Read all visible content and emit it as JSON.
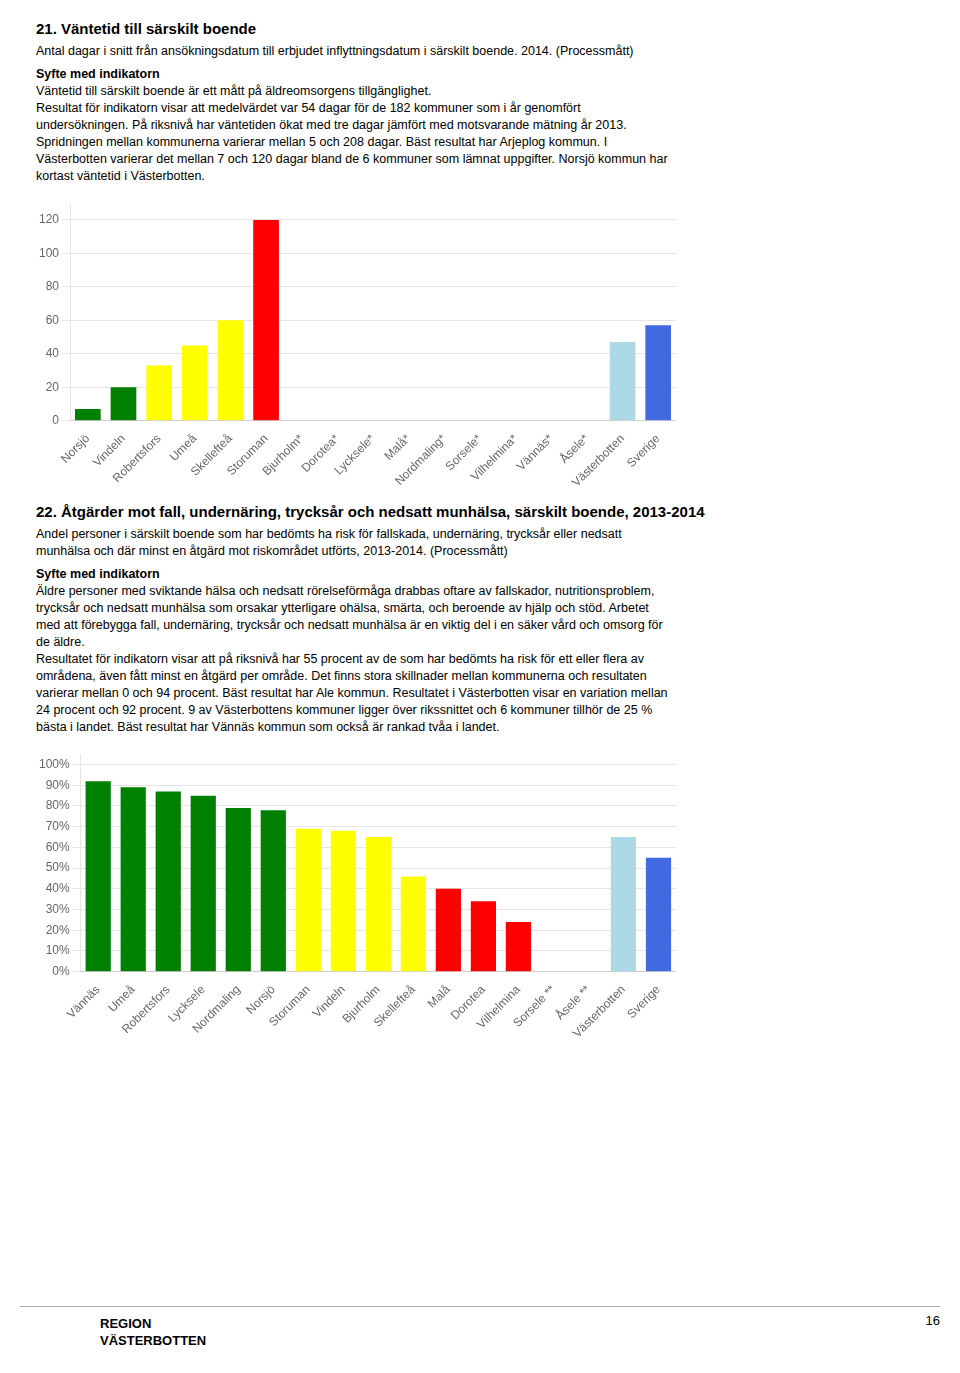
{
  "chart_data": [
    {
      "type": "bar",
      "title": "21. Väntetid till särskilt boende",
      "subtitle": [
        "Antal dagar i snitt från ansökningsdatum till erbjudet inflyttningsdatum i särskilt boende.  2014. (Processmått)"
      ],
      "annotations": [
        "Syfte med indikatorn",
        "Väntetid till särskilt boende är ett mått på äldreomsorgens tillgänglighet.",
        "Resultat för indikatorn visar att medelvärdet var 54 dagar för de 182 kommuner som i år genomfört",
        "undersökningen. På riksnivå har väntetiden ökat med tre dagar jämfört med motsvarande mätning år 2013.",
        "Spridningen mellan kommunerna varierar mellan 5 och 208 dagar. Bäst resultat har Arjeplog kommun. I",
        "Västerbotten varierar det mellan 7 och 120 dagar bland de 6 kommuner som lämnat uppgifter. Norsjö kommun har",
        "kortast väntetid i Västerbotten."
      ],
      "categories": [
        "Norsjö",
        "Vindeln",
        "Robertsfors",
        "Umeå",
        "Skellefteå",
        "Storuman",
        "Bjurholm*",
        "Dorotea*",
        "Lycksele*",
        "Malå*",
        "Nordmaling*",
        "Sorsele*",
        "Vilhelmina*",
        "Vännäs*",
        "Åsele*",
        "Västerbotten",
        "Sverige"
      ],
      "values": [
        7,
        20,
        33,
        45,
        60,
        120,
        0,
        0,
        0,
        0,
        0,
        0,
        0,
        0,
        0,
        47,
        57
      ],
      "colors": [
        "#008000",
        "#008000",
        "#ffff00",
        "#ffff00",
        "#ffff00",
        "#ff0000",
        "#c8c8c8",
        "#c8c8c8",
        "#c8c8c8",
        "#c8c8c8",
        "#c8c8c8",
        "#c8c8c8",
        "#c8c8c8",
        "#c8c8c8",
        "#c8c8c8",
        "#add8e6",
        "#4169e1"
      ],
      "ylim": [
        0,
        130
      ],
      "yticks": [
        0,
        20,
        40,
        60,
        80,
        100,
        120
      ],
      "grid": true
    },
    {
      "type": "bar",
      "title": "22. Åtgärder mot fall, undernäring, trycksår och nedsatt munhälsa, särskilt boende, 2013-2014",
      "subtitle": [
        "Andel personer i särskilt boende som har bedömts ha risk för fallskada, undernäring, trycksår eller nedsatt",
        "munhälsa och där minst en åtgärd mot riskområdet utförts, 2013-2014. (Processmått)"
      ],
      "annotations": [
        "Syfte med indikatorn",
        "Äldre personer med sviktande hälsa och nedsatt rörelseförmåga drabbas oftare av fallskador, nutritionsproblem,",
        "trycksår och nedsatt munhälsa som orsakar ytterligare ohälsa, smärta, och beroende av hjälp och stöd. Arbetet",
        "med att förebygga fall, undernäring, trycksår och nedsatt munhälsa är en viktig del i en säker vård och omsorg för",
        "de äldre.",
        "Resultatet för indikatorn visar att på riksnivå har 55 procent av de som har bedömts ha risk för ett eller flera av",
        "områdena, även fått minst en åtgärd per område. Det finns stora skillnader mellan kommunerna och resultaten",
        "varierar mellan 0 och 94 procent. Bäst resultat har Ale kommun. Resultatet i Västerbotten visar en variation mellan",
        "24 procent och 92 procent. 9 av Västerbottens kommuner ligger över rikssnittet och 6 kommuner tillhör de 25 %",
        "bästa i landet. Bäst resultat har Vännäs kommun som också är rankad tvåa i landet."
      ],
      "categories": [
        "Vännäs",
        "Umeå",
        "Robertsfors",
        "Lycksele",
        "Nordmaling",
        "Norsjö",
        "Storuman",
        "Vindeln",
        "Bjurholm",
        "Skellefteå",
        "Malå",
        "Dorotea",
        "Vilhelmina",
        "Sorsele **",
        "Åsele **",
        "Västerbotten",
        "Sverige"
      ],
      "values": [
        92,
        89,
        87,
        85,
        79,
        78,
        69,
        68,
        65,
        46,
        40,
        34,
        24,
        0,
        0,
        65,
        55
      ],
      "colors": [
        "#008000",
        "#008000",
        "#008000",
        "#008000",
        "#008000",
        "#008000",
        "#ffff00",
        "#ffff00",
        "#ffff00",
        "#ffff00",
        "#ff0000",
        "#ff0000",
        "#ff0000",
        "#c8c8c8",
        "#c8c8c8",
        "#add8e6",
        "#4169e1"
      ],
      "ylim": [
        0,
        105
      ],
      "yticks": [
        {
          "value": 0,
          "label": "0%"
        },
        {
          "value": 10,
          "label": "10%"
        },
        {
          "value": 20,
          "label": "20%"
        },
        {
          "value": 30,
          "label": "30%"
        },
        {
          "value": 40,
          "label": "40%"
        },
        {
          "value": 50,
          "label": "50%"
        },
        {
          "value": 60,
          "label": "60%"
        },
        {
          "value": 70,
          "label": "70%"
        },
        {
          "value": 80,
          "label": "80%"
        },
        {
          "value": 90,
          "label": "90%"
        },
        {
          "value": 100,
          "label": "100%"
        }
      ],
      "grid": true
    }
  ],
  "annotations": [
    "REGION",
    "VÄSTERBOTTEN",
    "16"
  ]
}
